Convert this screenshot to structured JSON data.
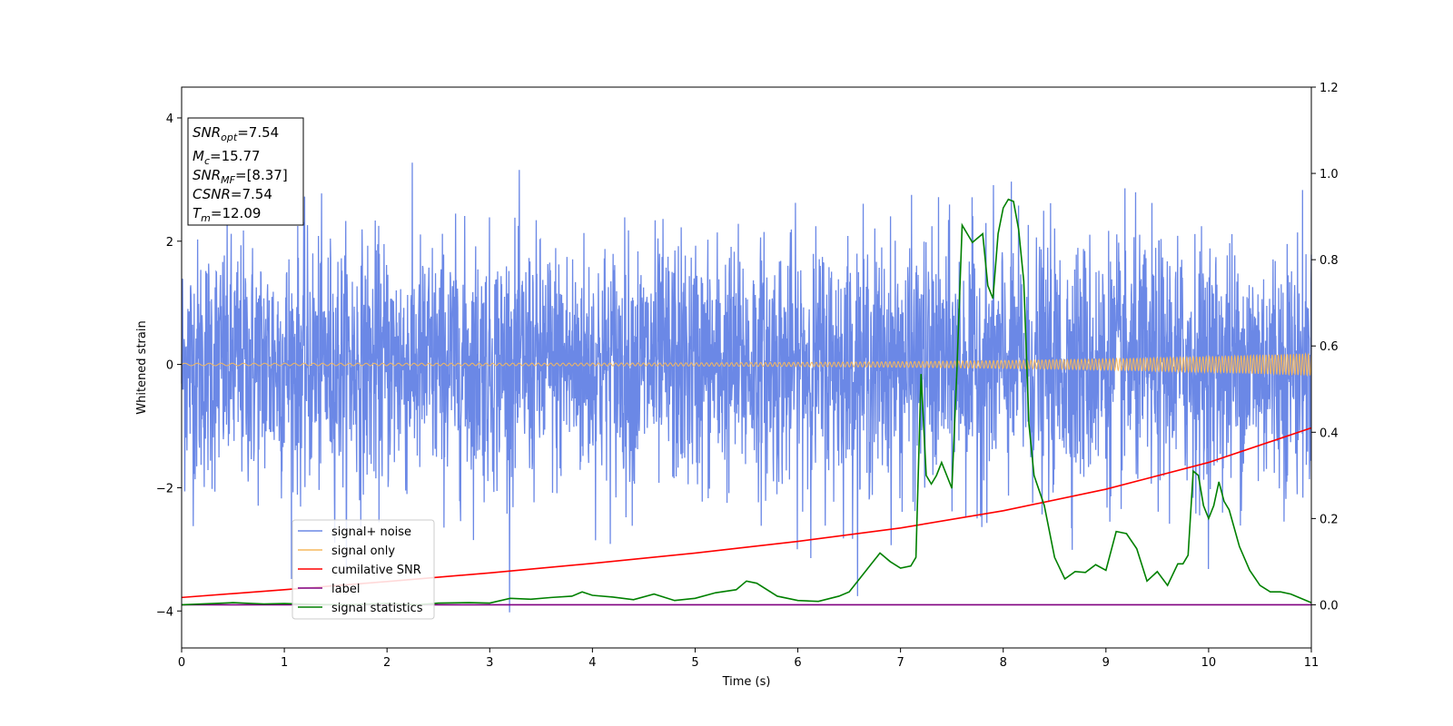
{
  "chart_data": {
    "type": "line",
    "xlabel": "Time (s)",
    "ylabel": "Whitened strain",
    "xlim": [
      0,
      11
    ],
    "ylim_left": [
      -4.6,
      4.5
    ],
    "ylim_right": [
      -0.1,
      1.2
    ],
    "x_ticks": [
      0,
      1,
      2,
      3,
      4,
      5,
      6,
      7,
      8,
      9,
      10,
      11
    ],
    "y_left_ticks": [
      -4,
      -2,
      0,
      2,
      4
    ],
    "y_right_ticks": [
      "0.0",
      "0.2",
      "0.4",
      "0.6",
      "0.8",
      "1.0",
      "1.2"
    ],
    "legend_location": "lower-left",
    "grid": false,
    "info_box": {
      "line1_prefix": "SNR",
      "line1_sub": "opt",
      "line1_value": "=7.54",
      "line2_prefix": "M",
      "line2_sub": "c",
      "line2_value": "=15.77",
      "line3_prefix": "SNR",
      "line3_sub": "MF",
      "line3_value": "=[8.37]",
      "line4_prefix": "CSNR",
      "line4_value": "=7.54",
      "line5_prefix": "T",
      "line5_sub": "m",
      "line5_value": "=12.09"
    },
    "series": [
      {
        "name": "signal+ noise",
        "axis": "left",
        "color": "#6b88e6",
        "description_envelope_amplitude": 1.0,
        "max_value": 4.1,
        "min_value": -4.15
      },
      {
        "name": "signal only",
        "axis": "left",
        "color": "#f5b85f",
        "amplitude_start": 0.02,
        "amplitude_end": 0.18
      },
      {
        "name": "cumilative SNR",
        "axis": "right",
        "color": "#ff0000",
        "x": [
          0,
          1,
          2,
          3,
          4,
          5,
          6,
          7,
          8,
          9,
          10,
          10.5,
          11
        ],
        "y": [
          0.017,
          0.035,
          0.054,
          0.074,
          0.096,
          0.12,
          0.147,
          0.178,
          0.218,
          0.268,
          0.33,
          0.37,
          0.41
        ]
      },
      {
        "name": "label",
        "axis": "right",
        "color": "#800080",
        "x": [
          0,
          11
        ],
        "y": [
          0.0,
          0.0
        ]
      },
      {
        "name": "signal statistics",
        "axis": "right",
        "color": "#008000",
        "x": [
          0,
          0.3,
          0.5,
          0.8,
          1.0,
          1.3,
          1.6,
          2.0,
          2.3,
          2.5,
          2.8,
          3.0,
          3.2,
          3.4,
          3.6,
          3.8,
          3.9,
          4.0,
          4.2,
          4.4,
          4.6,
          4.8,
          5.0,
          5.2,
          5.4,
          5.5,
          5.6,
          5.8,
          6.0,
          6.2,
          6.4,
          6.5,
          6.7,
          6.8,
          6.9,
          7.0,
          7.1,
          7.15,
          7.2,
          7.25,
          7.3,
          7.35,
          7.4,
          7.5,
          7.55,
          7.6,
          7.65,
          7.7,
          7.8,
          7.85,
          7.9,
          7.95,
          8.0,
          8.05,
          8.1,
          8.15,
          8.2,
          8.25,
          8.3,
          8.4,
          8.5,
          8.6,
          8.7,
          8.8,
          8.9,
          9.0,
          9.1,
          9.2,
          9.3,
          9.4,
          9.5,
          9.6,
          9.7,
          9.75,
          9.8,
          9.85,
          9.9,
          9.95,
          10.0,
          10.05,
          10.1,
          10.15,
          10.2,
          10.3,
          10.4,
          10.5,
          10.6,
          10.7,
          10.8,
          10.9,
          11.0
        ],
        "y": [
          0.0,
          0.003,
          0.005,
          0.002,
          0.003,
          0.001,
          0.0,
          0.003,
          0.0,
          0.004,
          0.005,
          0.004,
          0.015,
          0.013,
          0.017,
          0.02,
          0.03,
          0.022,
          0.018,
          0.012,
          0.025,
          0.01,
          0.015,
          0.028,
          0.035,
          0.055,
          0.05,
          0.02,
          0.01,
          0.008,
          0.02,
          0.03,
          0.09,
          0.12,
          0.1,
          0.085,
          0.09,
          0.11,
          0.535,
          0.3,
          0.28,
          0.3,
          0.33,
          0.27,
          0.55,
          0.88,
          0.86,
          0.84,
          0.86,
          0.74,
          0.71,
          0.86,
          0.92,
          0.94,
          0.935,
          0.87,
          0.75,
          0.42,
          0.3,
          0.23,
          0.11,
          0.06,
          0.077,
          0.075,
          0.093,
          0.08,
          0.17,
          0.165,
          0.13,
          0.055,
          0.077,
          0.045,
          0.095,
          0.095,
          0.115,
          0.31,
          0.3,
          0.23,
          0.2,
          0.23,
          0.285,
          0.24,
          0.22,
          0.135,
          0.08,
          0.045,
          0.03,
          0.03,
          0.025,
          0.015,
          0.005
        ]
      }
    ]
  }
}
